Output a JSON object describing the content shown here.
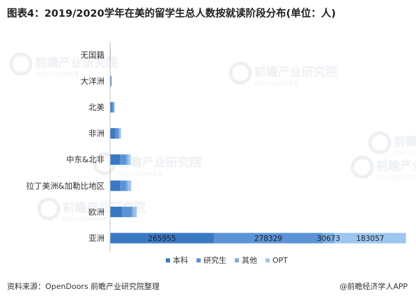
{
  "title": "图表4：2019/2020学年在美的留学生总人数按就读阶段分布(单位：人)",
  "source": "资料来源：OpenDoors 前瞻产业研究院整理",
  "credit": "@前瞻经济学人APP",
  "watermark": {
    "brand": "前瞻产业研究院",
    "sub": "中国产业咨询领导者"
  },
  "chart_data": {
    "type": "bar",
    "orientation": "horizontal",
    "stacked": true,
    "categories": [
      "无国籍",
      "大洋洲",
      "北美",
      "非洲",
      "中东&北非",
      "拉丁美洲&加勒比地区",
      "欧洲",
      "亚洲"
    ],
    "series": [
      {
        "name": "本科",
        "color": "#3a78c3",
        "values": [
          250,
          1800,
          5000,
          14000,
          25000,
          25000,
          31000,
          265955
        ]
      },
      {
        "name": "研究生",
        "color": "#5b93d6",
        "values": [
          150,
          1000,
          4000,
          8000,
          16000,
          16500,
          25000,
          278329
        ]
      },
      {
        "name": "其他",
        "color": "#7aaee3",
        "values": [
          50,
          400,
          1200,
          2500,
          5000,
          5000,
          4200,
          30673
        ]
      },
      {
        "name": "OPT",
        "color": "#9cc5ef",
        "values": [
          50,
          400,
          1800,
          3500,
          6500,
          7500,
          8000,
          183057
        ]
      }
    ],
    "data_labels": {
      "亚洲": [
        "265955",
        "278329",
        "30673",
        "183057"
      ]
    },
    "xlim": [
      0,
      757014
    ],
    "legend": "bottom",
    "grid": false
  }
}
